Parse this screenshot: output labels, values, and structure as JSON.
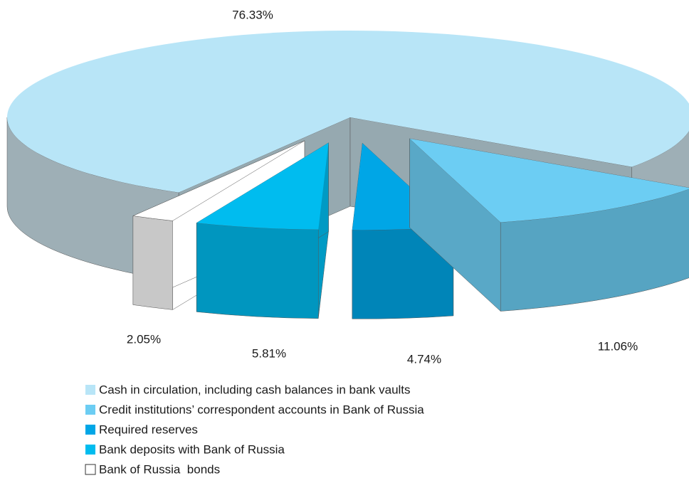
{
  "chart_data": {
    "type": "pie3d",
    "categories": [
      "Cash in circulation, including cash balances in bank vaults",
      "Credit institutions’ correspondent accounts in Bank of Russia",
      "Required reserves",
      "Bank deposits with Bank of Russia",
      "Bank of Russia  bonds"
    ],
    "values": [
      76.33,
      11.06,
      4.74,
      5.81,
      2.05
    ],
    "value_labels": [
      "76.33%",
      "11.06%",
      "4.74%",
      "5.81%",
      "2.05%"
    ],
    "colors": [
      "#b8e5f7",
      "#6ccdf3",
      "#00a6e6",
      "#00bcef",
      "#ffffff"
    ],
    "legend": "bottom-left"
  }
}
